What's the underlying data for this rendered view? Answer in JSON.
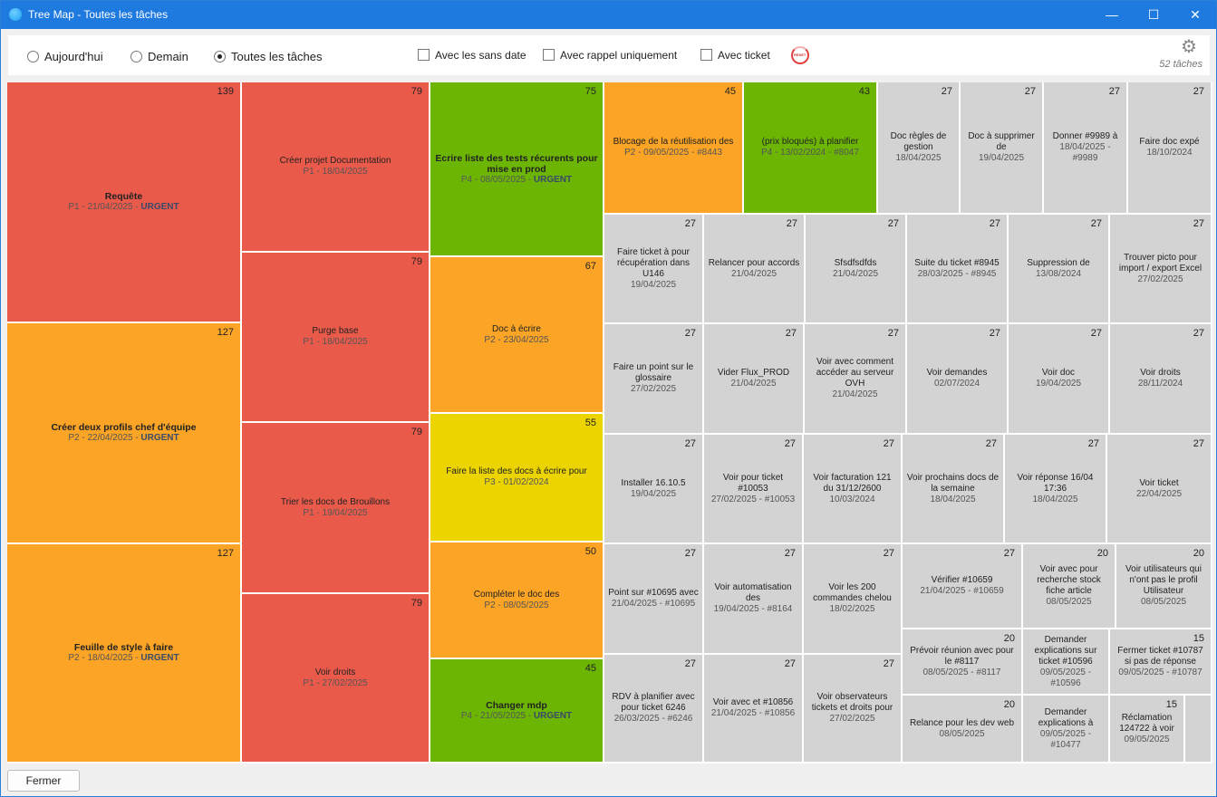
{
  "window": {
    "title": "Tree Map - Toutes les tâches",
    "minimize": "—",
    "maximize": "☐",
    "close": "✕"
  },
  "filters": {
    "radios": [
      {
        "label": "Aujourd'hui",
        "checked": false
      },
      {
        "label": "Demain",
        "checked": false
      },
      {
        "label": "Toutes les tâches",
        "checked": true
      }
    ],
    "checks": [
      {
        "label": "Avec les sans date",
        "checked": false
      },
      {
        "label": "Avec rappel uniquement",
        "checked": false
      },
      {
        "label": "Avec ticket",
        "checked": false
      }
    ],
    "reset_label": "RESET",
    "task_count": "52 tâches"
  },
  "colors": {
    "red": "#ea5a4a",
    "orange": "#fba425",
    "green": "#6cb503",
    "yellow": "#ecd400",
    "gray": "#d3d3d3"
  },
  "tiles": [
    {
      "n": "139",
      "c": "red",
      "t": "Requête",
      "s": "P1 - 21/04/2025 - ",
      "u": "URGENT",
      "b": true
    },
    {
      "n": "127",
      "c": "orange",
      "t": "Créer deux profils chef d'équipe",
      "s": "P2 - 22/04/2025 - ",
      "u": "URGENT",
      "b": true
    },
    {
      "n": "127",
      "c": "orange",
      "t": "Feuille de style à faire",
      "s": "P2 - 18/04/2025 - ",
      "u": "URGENT",
      "b": true
    },
    {
      "n": "79",
      "c": "red",
      "t": "Créer projet Documentation",
      "s": "P1 - 18/04/2025"
    },
    {
      "n": "79",
      "c": "red",
      "t": "Purge base",
      "s": "P1 - 18/04/2025"
    },
    {
      "n": "79",
      "c": "red",
      "t": "Trier les docs de Brouillons",
      "s": "P1 - 19/04/2025"
    },
    {
      "n": "79",
      "c": "red",
      "t": "Voir droits",
      "s": "P1 - 27/02/2025"
    },
    {
      "n": "75",
      "c": "green",
      "t": "Ecrire liste des tests récurents pour mise en prod",
      "s": "P4 - 08/05/2025 - ",
      "u": "URGENT",
      "b": true
    },
    {
      "n": "67",
      "c": "orange",
      "t": "Doc à écrire",
      "s": "P2 - 23/04/2025"
    },
    {
      "n": "55",
      "c": "yellow",
      "t": "Faire la liste des docs à écrire pour",
      "s": "P3 - 01/02/2024"
    },
    {
      "n": "50",
      "c": "orange",
      "t": "Compléter le doc des",
      "s": "P2 - 08/05/2025"
    },
    {
      "n": "45",
      "c": "green",
      "t": "Changer mdp",
      "s": "P4 - 21/05/2025 - ",
      "u": "URGENT",
      "b": true
    },
    {
      "n": "45",
      "c": "orange",
      "t": "Blocage de la réutilisation des",
      "s": "P2 - 09/05/2025 - #8443"
    },
    {
      "n": "43",
      "c": "green",
      "t": "(prix bloqués) à planifier",
      "s": "P4 - 13/02/2024 - #8047"
    },
    {
      "n": "27",
      "c": "gray",
      "t": "Doc règles de gestion",
      "s": "18/04/2025"
    },
    {
      "n": "27",
      "c": "gray",
      "t": "Doc à supprimer de",
      "s": "19/04/2025"
    },
    {
      "n": "27",
      "c": "gray",
      "t": "Donner #9989 à",
      "s": "18/04/2025 - #9989"
    },
    {
      "n": "27",
      "c": "gray",
      "t": "Faire doc expé",
      "s": "18/10/2024"
    },
    {
      "n": "27",
      "c": "gray",
      "t": "Faire ticket à pour récupération dans U146",
      "s": "19/04/2025"
    },
    {
      "n": "27",
      "c": "gray",
      "t": "Relancer pour accords",
      "s": "21/04/2025"
    },
    {
      "n": "27",
      "c": "gray",
      "t": "Sfsdfsdfds",
      "s": "21/04/2025"
    },
    {
      "n": "27",
      "c": "gray",
      "t": "Suite du ticket #8945",
      "s": "28/03/2025 - #8945"
    },
    {
      "n": "27",
      "c": "gray",
      "t": "Suppression de",
      "s": "13/08/2024"
    },
    {
      "n": "27",
      "c": "gray",
      "t": "Trouver picto pour import / export Excel",
      "s": "27/02/2025"
    },
    {
      "n": "27",
      "c": "gray",
      "t": "Faire un point sur le glossaire",
      "s": "27/02/2025"
    },
    {
      "n": "27",
      "c": "gray",
      "t": "Vider Flux_PROD",
      "s": "21/04/2025"
    },
    {
      "n": "27",
      "c": "gray",
      "t": "Voir avec comment accéder au serveur OVH",
      "s": "21/04/2025"
    },
    {
      "n": "27",
      "c": "gray",
      "t": "Voir demandes",
      "s": "02/07/2024"
    },
    {
      "n": "27",
      "c": "gray",
      "t": "Voir doc",
      "s": "19/04/2025"
    },
    {
      "n": "27",
      "c": "gray",
      "t": "Voir droits",
      "s": "28/11/2024"
    },
    {
      "n": "27",
      "c": "gray",
      "t": "Installer 16.10.5",
      "s": "19/04/2025"
    },
    {
      "n": "27",
      "c": "gray",
      "t": "Voir pour ticket #10053",
      "s": "27/02/2025 - #10053"
    },
    {
      "n": "27",
      "c": "gray",
      "t": "Voir facturation 121 du 31/12/2600",
      "s": "10/03/2024"
    },
    {
      "n": "27",
      "c": "gray",
      "t": "Voir prochains docs de la semaine",
      "s": "18/04/2025"
    },
    {
      "n": "27",
      "c": "gray",
      "t": "Voir réponse 16/04 17:36",
      "s": "18/04/2025"
    },
    {
      "n": "27",
      "c": "gray",
      "t": "Voir ticket",
      "s": "22/04/2025"
    },
    {
      "n": "27",
      "c": "gray",
      "t": "Point sur #10695 avec",
      "s": "21/04/2025 - #10695"
    },
    {
      "n": "27",
      "c": "gray",
      "t": "Voir automatisation des",
      "s": "19/04/2025 - #8164"
    },
    {
      "n": "27",
      "c": "gray",
      "t": "Voir les 200 commandes chelou",
      "s": "18/02/2025"
    },
    {
      "n": "27",
      "c": "gray",
      "t": "Vérifier #10659",
      "s": "21/04/2025 - #10659"
    },
    {
      "n": "20",
      "c": "gray",
      "t": "Voir avec pour recherche stock fiche article",
      "s": "08/05/2025"
    },
    {
      "n": "20",
      "c": "gray",
      "t": "Voir utilisateurs qui n'ont pas le profil Utilisateur",
      "s": "08/05/2025"
    },
    {
      "n": "27",
      "c": "gray",
      "t": "RDV à planifier avec pour ticket 6246",
      "s": "26/03/2025 - #6246"
    },
    {
      "n": "27",
      "c": "gray",
      "t": "Voir avec et #10856",
      "s": "21/04/2025 - #10856"
    },
    {
      "n": "27",
      "c": "gray",
      "t": "Voir observateurs tickets et droits pour",
      "s": "27/02/2025"
    },
    {
      "n": "20",
      "c": "gray",
      "t": "Prévoir réunion avec pour le #8117",
      "s": "08/05/2025 - #8117"
    },
    {
      "n": "",
      "c": "gray",
      "t": "Demander explications sur ticket #10596",
      "s": "09/05/2025 - #10596"
    },
    {
      "n": "15",
      "c": "gray",
      "t": "Fermer ticket #10787 si pas de réponse",
      "s": "09/05/2025 - #10787"
    },
    {
      "n": "20",
      "c": "gray",
      "t": "Relance pour les dev web",
      "s": "08/05/2025"
    },
    {
      "n": "",
      "c": "gray",
      "t": "Demander explications à",
      "s": "09/05/2025 - #10477"
    },
    {
      "n": "15",
      "c": "gray",
      "t": "Réclamation 124722 à voir",
      "s": "09/05/2025"
    },
    {
      "n": "",
      "c": "gray",
      "t": "",
      "s": ""
    }
  ],
  "close_button": "Fermer"
}
